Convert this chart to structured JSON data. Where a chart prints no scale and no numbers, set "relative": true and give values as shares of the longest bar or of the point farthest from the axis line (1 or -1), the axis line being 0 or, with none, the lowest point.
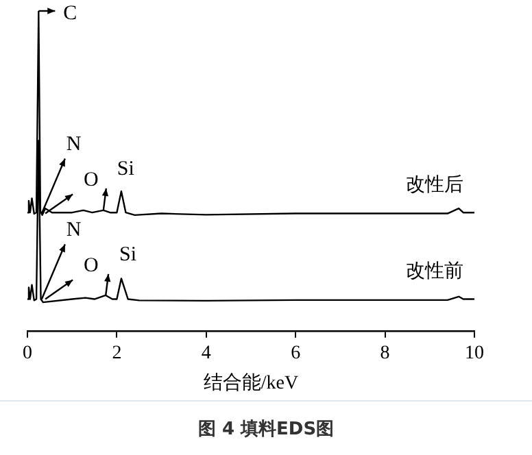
{
  "chart_data": {
    "type": "line",
    "relative": true,
    "title": "图 4 填料EDS图",
    "xlabel": "结合能/keV",
    "xlim": [
      0,
      10
    ],
    "xticks": [
      0,
      2,
      4,
      6,
      8,
      10
    ],
    "grid": false,
    "legend": false,
    "marker": "none",
    "line_style": "solid",
    "annotations": [
      {
        "text": "C",
        "x": 0.25,
        "y": 1
      },
      {
        "text": "N",
        "x": 0.32,
        "y": 0.37
      },
      {
        "text": "O",
        "x": 0.4,
        "y": 0.37
      },
      {
        "text": "Si",
        "x": 1.7,
        "y": 0.38
      },
      {
        "text": "N",
        "x": 0.32,
        "y": 0.1
      },
      {
        "text": "O",
        "x": 0.4,
        "y": 0.1
      },
      {
        "text": "Si",
        "x": 1.75,
        "y": 0.11
      }
    ],
    "series": [
      {
        "name": "改性后",
        "color": "#000000",
        "x": [
          0,
          0.03,
          0.06,
          0.1,
          0.15,
          0.2,
          0.25,
          0.29,
          0.33,
          0.4,
          0.55,
          1.0,
          1.25,
          1.45,
          1.7,
          1.85,
          2.0,
          2.1,
          2.2,
          2.4,
          3.0,
          4.0,
          6.0,
          8.0,
          9.4,
          9.65,
          9.75,
          10
        ],
        "values": [
          0.373,
          0.41,
          0.373,
          0.418,
          0.369,
          0.373,
          1.0,
          0.378,
          0.365,
          0.386,
          0.373,
          0.373,
          0.38,
          0.373,
          0.38,
          0.373,
          0.373,
          0.44,
          0.373,
          0.365,
          0.37,
          0.366,
          0.37,
          0.37,
          0.37,
          0.386,
          0.373,
          0.373
        ]
      },
      {
        "name": "改性前",
        "color": "#000000",
        "x": [
          0,
          0.03,
          0.06,
          0.1,
          0.15,
          0.2,
          0.25,
          0.3,
          0.35,
          1.0,
          1.3,
          1.5,
          1.75,
          1.9,
          2.0,
          2.1,
          2.25,
          2.5,
          4.0,
          6.0,
          8.0,
          9.4,
          9.65,
          9.75,
          10
        ],
        "values": [
          0.1,
          0.137,
          0.1,
          0.145,
          0.096,
          0.1,
          0.6,
          0.1,
          0.09,
          0.1,
          0.104,
          0.1,
          0.112,
          0.1,
          0.1,
          0.165,
          0.1,
          0.096,
          0.095,
          0.097,
          0.097,
          0.097,
          0.108,
          0.1,
          0.1
        ]
      }
    ]
  }
}
